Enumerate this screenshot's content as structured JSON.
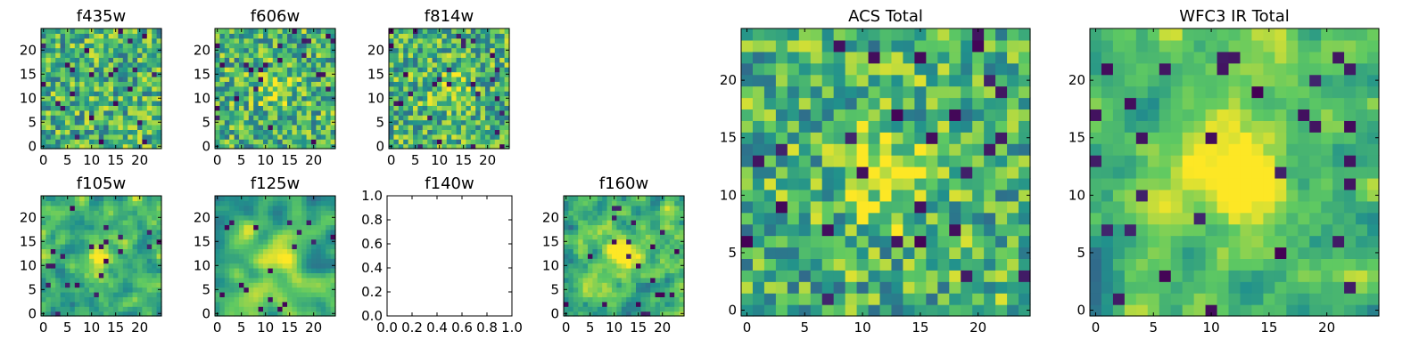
{
  "chart_data": {
    "type": "heatmap",
    "colormap": [
      "#440154",
      "#3b528b",
      "#21918c",
      "#5ec962",
      "#fde725"
    ],
    "panels": [
      {
        "title": "f435w",
        "has_image": true,
        "xticks": [
          "0",
          "5",
          "10",
          "15",
          "20"
        ],
        "yticks": [
          "0",
          "5",
          "10",
          "15",
          "20"
        ],
        "seed": 11,
        "blob": 0.0,
        "smooth": 0
      },
      {
        "title": "f606w",
        "has_image": true,
        "xticks": [
          "0",
          "5",
          "10",
          "15",
          "20"
        ],
        "yticks": [
          "0",
          "5",
          "10",
          "15",
          "20"
        ],
        "seed": 23,
        "blob": 0.25,
        "smooth": 0
      },
      {
        "title": "f814w",
        "has_image": true,
        "xticks": [
          "0",
          "5",
          "10",
          "15",
          "20"
        ],
        "yticks": [
          "0",
          "5",
          "10",
          "15",
          "20"
        ],
        "seed": 37,
        "blob": 0.2,
        "smooth": 0
      },
      {
        "title": "f105w",
        "has_image": true,
        "xticks": [
          "0",
          "5",
          "10",
          "15",
          "20"
        ],
        "yticks": [
          "0",
          "5",
          "10",
          "15",
          "20"
        ],
        "seed": 41,
        "blob": 0.35,
        "smooth": 1
      },
      {
        "title": "f125w",
        "has_image": true,
        "xticks": [
          "0",
          "5",
          "10",
          "15",
          "20"
        ],
        "yticks": [
          "0",
          "5",
          "10",
          "15",
          "20"
        ],
        "seed": 53,
        "blob": 0.3,
        "smooth": 2
      },
      {
        "title": "f140w",
        "has_image": false,
        "xticks": [
          "0.0",
          "0.2",
          "0.4",
          "0.6",
          "0.8",
          "1.0"
        ],
        "yticks": [
          "0.0",
          "0.2",
          "0.4",
          "0.6",
          "0.8",
          "1.0"
        ]
      },
      {
        "title": "f160w",
        "has_image": true,
        "xticks": [
          "0",
          "5",
          "10",
          "15",
          "20"
        ],
        "yticks": [
          "0",
          "5",
          "10",
          "15",
          "20"
        ],
        "seed": 67,
        "blob": 0.45,
        "smooth": 1
      },
      {
        "title": "ACS Total",
        "has_image": true,
        "xticks": [
          "0",
          "5",
          "10",
          "15",
          "20"
        ],
        "yticks": [
          "0",
          "5",
          "10",
          "15",
          "20"
        ],
        "seed": 79,
        "blob": 0.35,
        "smooth": 0
      },
      {
        "title": "WFC3 IR Total",
        "has_image": true,
        "xticks": [
          "0",
          "5",
          "10",
          "15",
          "20"
        ],
        "yticks": [
          "0",
          "5",
          "10",
          "15",
          "20"
        ],
        "seed": 97,
        "blob": 0.5,
        "smooth": 1
      }
    ],
    "grid_size": 25,
    "axis_range": [
      -0.5,
      24.5
    ]
  }
}
